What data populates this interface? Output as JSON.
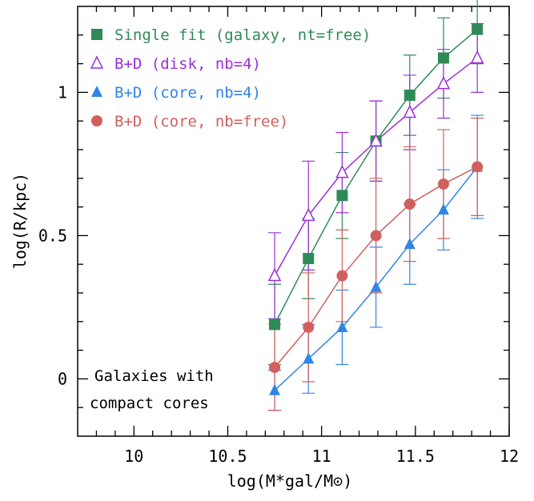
{
  "chart_data": {
    "type": "line",
    "x_label": "log(M*gal/M⊙)",
    "y_label": "log(R/kpc)",
    "annotation": [
      "Galaxies with",
      "compact cores"
    ],
    "x": [
      10.75,
      10.93,
      11.11,
      11.29,
      11.47,
      11.65,
      11.83
    ],
    "series": [
      {
        "name": "Single fit (galaxy, nt=free)",
        "color": "#2e8b57",
        "marker": "square",
        "values": [
          0.19,
          0.42,
          0.64,
          0.83,
          0.99,
          1.12,
          1.22
        ],
        "errors": [
          0.14,
          0.14,
          0.15,
          0.14,
          0.14,
          0.14,
          0.12
        ]
      },
      {
        "name": "B+D (disk, nb=4)",
        "color": "#9b30d9",
        "marker": "triangle-open",
        "values": [
          0.36,
          0.57,
          0.72,
          0.83,
          0.93,
          1.03,
          1.12
        ],
        "errors": [
          0.15,
          0.19,
          0.14,
          0.14,
          0.13,
          0.12,
          0.12
        ]
      },
      {
        "name": "B+D (core, nb=4)",
        "color": "#2f86e6",
        "marker": "triangle",
        "values": [
          -0.04,
          0.07,
          0.18,
          0.32,
          0.47,
          0.59,
          0.74
        ],
        "errors": [
          0.07,
          0.12,
          0.13,
          0.14,
          0.14,
          0.14,
          0.18
        ]
      },
      {
        "name": "B+D (core, nb=free)",
        "color": "#d0605e",
        "marker": "circle",
        "values": [
          0.04,
          0.18,
          0.36,
          0.5,
          0.61,
          0.68,
          0.74
        ],
        "errors": [
          0.15,
          0.19,
          0.16,
          0.2,
          0.2,
          0.19,
          0.17
        ]
      }
    ],
    "xlim": [
      9.7,
      12.0
    ],
    "ylim": [
      -0.2,
      1.3
    ],
    "xticks": [
      10,
      10.5,
      11,
      11.5,
      12
    ],
    "yticks": [
      0,
      0.5,
      1
    ],
    "xminorticks": [
      9.8,
      9.9,
      10.1,
      10.2,
      10.3,
      10.4,
      10.6,
      10.7,
      10.8,
      10.9,
      11.1,
      11.2,
      11.3,
      11.4,
      11.6,
      11.7,
      11.8,
      11.9
    ],
    "yminorticks": [
      -0.1,
      0.1,
      0.2,
      0.3,
      0.4,
      0.6,
      0.7,
      0.8,
      0.9,
      1.1,
      1.2
    ]
  }
}
